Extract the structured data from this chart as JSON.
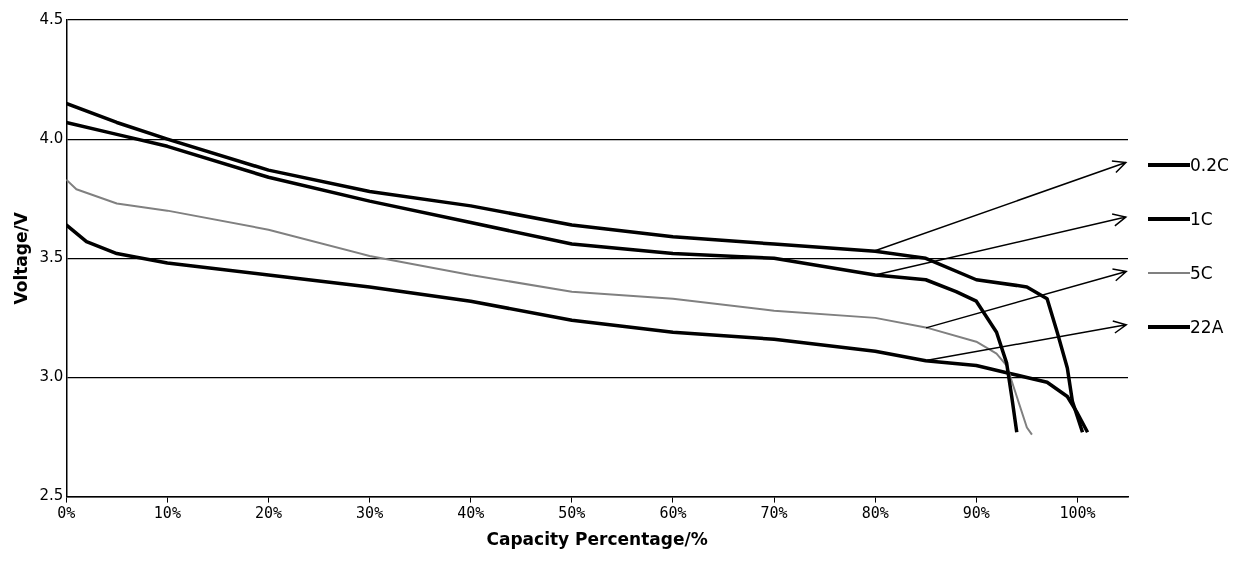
{
  "chart_data": {
    "type": "line",
    "xlabel": "Capacity Percentage/%",
    "ylabel": "Voltage/V",
    "xlim": [
      0,
      105
    ],
    "xticks": [
      {
        "value": 0,
        "label": "0%"
      },
      {
        "value": 10,
        "label": "10%"
      },
      {
        "value": 20,
        "label": "20%"
      },
      {
        "value": 30,
        "label": "30%"
      },
      {
        "value": 40,
        "label": "40%"
      },
      {
        "value": 50,
        "label": "50%"
      },
      {
        "value": 60,
        "label": "60%"
      },
      {
        "value": 70,
        "label": "70%"
      },
      {
        "value": 80,
        "label": "80%"
      },
      {
        "value": 90,
        "label": "90%"
      },
      {
        "value": 100,
        "label": "100%"
      }
    ],
    "ylim": [
      2.5,
      4.5
    ],
    "yticks": [
      2.5,
      {
        "value": 3,
        "label": "3.0"
      },
      3.5,
      {
        "value": 4,
        "label": "4.0"
      },
      4.5
    ],
    "grid": "y",
    "legend": "right",
    "marker": "none",
    "line_style": "solid",
    "series": [
      {
        "name": "0.2C",
        "color": "#000000",
        "x": [
          0,
          5,
          10,
          20,
          30,
          40,
          50,
          60,
          70,
          80,
          85,
          90,
          95,
          97,
          98,
          99,
          99.5,
          100.5
        ],
        "values": [
          4.15,
          4.07,
          4.0,
          3.87,
          3.78,
          3.72,
          3.64,
          3.59,
          3.56,
          3.53,
          3.5,
          3.41,
          3.38,
          3.33,
          3.19,
          3.04,
          2.9,
          2.77
        ]
      },
      {
        "name": "1C",
        "color": "#000000",
        "x": [
          0,
          5,
          10,
          20,
          30,
          40,
          50,
          60,
          70,
          80,
          85,
          88,
          90,
          92,
          93,
          93.5,
          94
        ],
        "values": [
          4.07,
          4.02,
          3.97,
          3.84,
          3.74,
          3.65,
          3.56,
          3.52,
          3.5,
          3.43,
          3.41,
          3.36,
          3.32,
          3.19,
          3.06,
          2.92,
          2.77
        ]
      },
      {
        "name": "5C",
        "color": "#808080",
        "x": [
          0,
          1,
          5,
          10,
          20,
          30,
          40,
          50,
          60,
          70,
          80,
          85,
          90,
          92,
          93,
          94,
          95,
          95.5
        ],
        "values": [
          3.83,
          3.79,
          3.73,
          3.7,
          3.62,
          3.51,
          3.43,
          3.36,
          3.33,
          3.28,
          3.25,
          3.21,
          3.15,
          3.1,
          3.05,
          2.92,
          2.79,
          2.76
        ]
      },
      {
        "name": "22A",
        "color": "#000000",
        "x": [
          0,
          2,
          5,
          10,
          20,
          30,
          40,
          50,
          60,
          70,
          80,
          85,
          90,
          93,
          95,
          97,
          99,
          100,
          101
        ],
        "values": [
          3.64,
          3.57,
          3.52,
          3.48,
          3.43,
          3.38,
          3.32,
          3.24,
          3.19,
          3.16,
          3.11,
          3.07,
          3.05,
          3.02,
          3.0,
          2.98,
          2.92,
          2.85,
          2.77
        ]
      }
    ]
  }
}
